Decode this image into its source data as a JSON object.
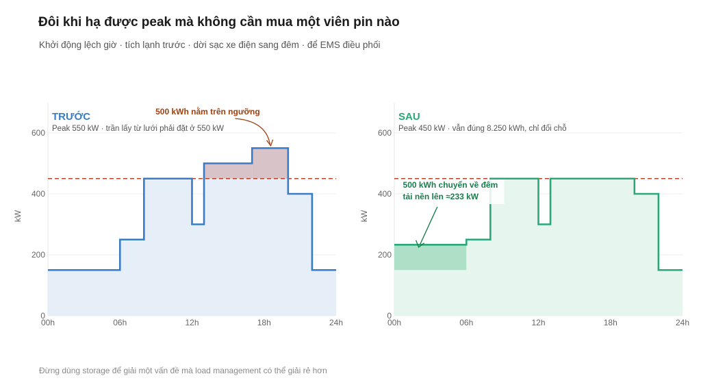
{
  "title": "Đôi khi hạ được peak mà không cần mua một viên pin nào",
  "subtitle": "Khởi động lệch giờ · tích lạnh trước · dời sạc xe điện sang đêm · để EMS điều phối",
  "footer": "Đừng dùng storage để giải một vấn đề mà load management có thể giải rẻ hơn",
  "colors": {
    "before_line": "#3a7bc8",
    "before_fill": "#e6eef8",
    "excess_fill": "#d8c4c8",
    "after_line": "#2aa878",
    "after_fill": "#e6f5ee",
    "shifted_fill": "#aee0c8",
    "threshold": "#b5442a",
    "annotation_before": "#a0400f",
    "annotation_after": "#1b7d4d"
  },
  "chart_data": [
    {
      "type": "area",
      "panel_title": "TRƯỚC",
      "panel_subtitle": "Peak 550 kW · trần lấy từ lưới phải đặt ở 550 kW",
      "ylabel": "kW",
      "xlim": [
        0,
        24
      ],
      "ylim": [
        0,
        600
      ],
      "x_ticks": [
        {
          "v": 0,
          "label": "00h"
        },
        {
          "v": 6,
          "label": "06h"
        },
        {
          "v": 12,
          "label": "12h"
        },
        {
          "v": 18,
          "label": "18h"
        },
        {
          "v": 24,
          "label": "24h"
        }
      ],
      "y_ticks": [
        0,
        200,
        400,
        600
      ],
      "threshold": 450,
      "series": [
        {
          "values": [
            {
              "x0": 0,
              "x1": 6,
              "y": 150
            },
            {
              "x0": 6,
              "x1": 8,
              "y": 250
            },
            {
              "x0": 8,
              "x1": 12,
              "y": 450
            },
            {
              "x0": 12,
              "x1": 13,
              "y": 300
            },
            {
              "x0": 13,
              "x1": 17,
              "y": 500
            },
            {
              "x0": 17,
              "x1": 20,
              "y": 550
            },
            {
              "x0": 20,
              "x1": 22,
              "y": 400
            },
            {
              "x0": 22,
              "x1": 24,
              "y": 150
            }
          ]
        }
      ],
      "annotation": {
        "text": "500 kWh nằm trên ngưỡng",
        "text_x": 10,
        "text_y": 670,
        "target_x": 18.5,
        "target_y": 560
      }
    },
    {
      "type": "area",
      "panel_title": "SAU",
      "panel_subtitle": "Peak 450 kW · vẫn đúng 8.250 kWh, chỉ đổi chỗ",
      "ylabel": "kW",
      "xlim": [
        0,
        24
      ],
      "ylim": [
        0,
        600
      ],
      "x_ticks": [
        {
          "v": 0,
          "label": "00h"
        },
        {
          "v": 6,
          "label": "06h"
        },
        {
          "v": 12,
          "label": "12h"
        },
        {
          "v": 18,
          "label": "18h"
        },
        {
          "v": 24,
          "label": "24h"
        }
      ],
      "y_ticks": [
        0,
        200,
        400,
        600
      ],
      "threshold": 450,
      "shifted_band": {
        "x0": 0,
        "x1": 6,
        "y0": 150,
        "y1": 233
      },
      "series": [
        {
          "values": [
            {
              "x0": 0,
              "x1": 6,
              "y": 233
            },
            {
              "x0": 6,
              "x1": 8,
              "y": 250
            },
            {
              "x0": 8,
              "x1": 12,
              "y": 450
            },
            {
              "x0": 12,
              "x1": 13,
              "y": 300
            },
            {
              "x0": 13,
              "x1": 20,
              "y": 450
            },
            {
              "x0": 20,
              "x1": 22,
              "y": 400
            },
            {
              "x0": 22,
              "x1": 24,
              "y": 150
            }
          ]
        }
      ],
      "annotation": {
        "lines": [
          "500 kWh chuyển về đêm",
          "tải nền lên ≈233 kW"
        ],
        "text_x": 0.6,
        "text_y": 425,
        "target_x": 2.6,
        "target_y": 243
      }
    }
  ]
}
